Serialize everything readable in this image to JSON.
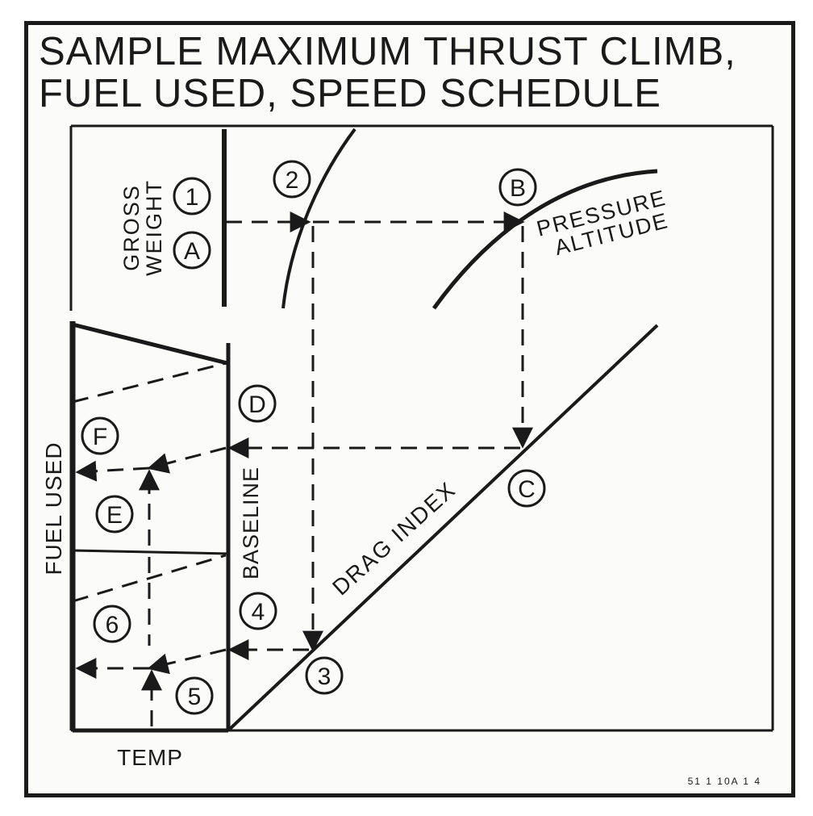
{
  "title": {
    "line1": "SAMPLE MAXIMUM THRUST CLIMB,",
    "line2": "FUEL USED, SPEED SCHEDULE"
  },
  "labels": {
    "gross_weight_line1": "GROSS",
    "gross_weight_line2": "WEIGHT",
    "pressure_altitude_line1": "PRESSURE",
    "pressure_altitude_line2": "ALTITUDE",
    "drag_index": "DRAG INDEX",
    "fuel_used": "FUEL USED",
    "baseline": "BASELINE",
    "temp": "TEMP",
    "code": "51 1 10A 1 4"
  },
  "markers": {
    "m1": "1",
    "m2": "2",
    "m3": "3",
    "m4": "4",
    "m5": "5",
    "m6": "6",
    "mA": "A",
    "mB": "B",
    "mC": "C",
    "mD": "D",
    "mE": "E",
    "mF": "F"
  }
}
